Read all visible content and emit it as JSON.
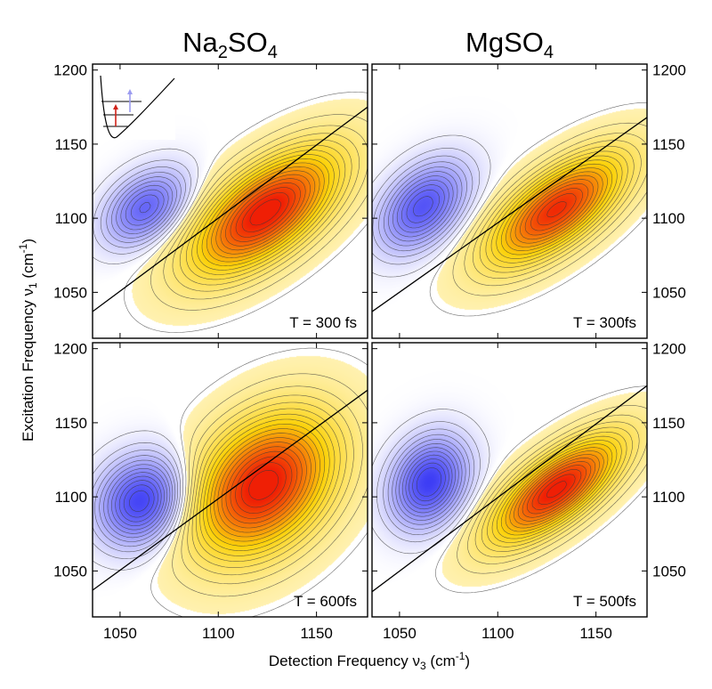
{
  "chart_data": {
    "type": "heatmap",
    "title": "",
    "column_titles": [
      {
        "base": "Na",
        "sub1": "2",
        "mid": "SO",
        "sub2": "4"
      },
      {
        "base": "MgSO",
        "sub1": "4",
        "mid": "",
        "sub2": ""
      }
    ],
    "xlabel": {
      "main": "Detection Frequency ν",
      "sub": "3",
      "unit_pre": " (cm",
      "sup": "-1",
      "unit_post": ")"
    },
    "ylabel": {
      "main": "Excitation Frequency ν",
      "sub": "1",
      "unit_pre": " (cm",
      "sup": "-1",
      "unit_post": ")"
    },
    "xlim": [
      1036,
      1176
    ],
    "ylim": [
      1019,
      1204
    ],
    "x_ticks": [
      "1050",
      "1100",
      "1150"
    ],
    "y_ticks": [
      "1050",
      "1100",
      "1150",
      "1200"
    ],
    "colormap": {
      "negative": "#3d3df5",
      "zero": "#ffffff",
      "low_positive": "#fff1b0",
      "mid_positive": "#fcd20a",
      "high_positive": "#ef1f05"
    },
    "panels": [
      {
        "salt": "Na2SO4",
        "label": "T = 300 fs",
        "diagonal": [
          [
            1036,
            1037
          ],
          [
            1176,
            1175
          ]
        ],
        "positive_peak": {
          "x": 1124,
          "y": 1104,
          "sx": 26,
          "sy": 29,
          "rho": 0.63,
          "amp": 1.0
        },
        "negative_peak": {
          "x": 1063,
          "y": 1107,
          "sx": 14,
          "sy": 17,
          "rho": 0.38,
          "amp": 0.55
        },
        "inset": true
      },
      {
        "salt": "MgSO4",
        "label": "T = 300fs",
        "diagonal": [
          [
            1036,
            1037
          ],
          [
            1176,
            1168
          ]
        ],
        "positive_peak": {
          "x": 1130,
          "y": 1106,
          "sx": 24,
          "sy": 26,
          "rho": 0.68,
          "amp": 0.92
        },
        "negative_peak": {
          "x": 1062,
          "y": 1108,
          "sx": 15,
          "sy": 20,
          "rho": 0.42,
          "amp": 0.62
        },
        "inset": false
      },
      {
        "salt": "Na2SO4",
        "label": "T = 600fs",
        "diagonal": [
          [
            1036,
            1037
          ],
          [
            1176,
            1172
          ]
        ],
        "positive_peak": {
          "x": 1123,
          "y": 1108,
          "sx": 25,
          "sy": 33,
          "rho": 0.35,
          "amp": 1.0
        },
        "negative_peak": {
          "x": 1061,
          "y": 1097,
          "sx": 15,
          "sy": 20,
          "rho": 0.15,
          "amp": 0.72
        },
        "inset": false
      },
      {
        "salt": "MgSO4",
        "label": "T = 500fs",
        "diagonal": [
          [
            1036,
            1036
          ],
          [
            1176,
            1175
          ]
        ],
        "positive_peak": {
          "x": 1130,
          "y": 1105,
          "sx": 23,
          "sy": 25,
          "rho": 0.72,
          "amp": 0.98
        },
        "negative_peak": {
          "x": 1065,
          "y": 1110,
          "sx": 13,
          "sy": 20,
          "rho": 0.22,
          "amp": 0.72
        },
        "inset": false
      }
    ]
  }
}
